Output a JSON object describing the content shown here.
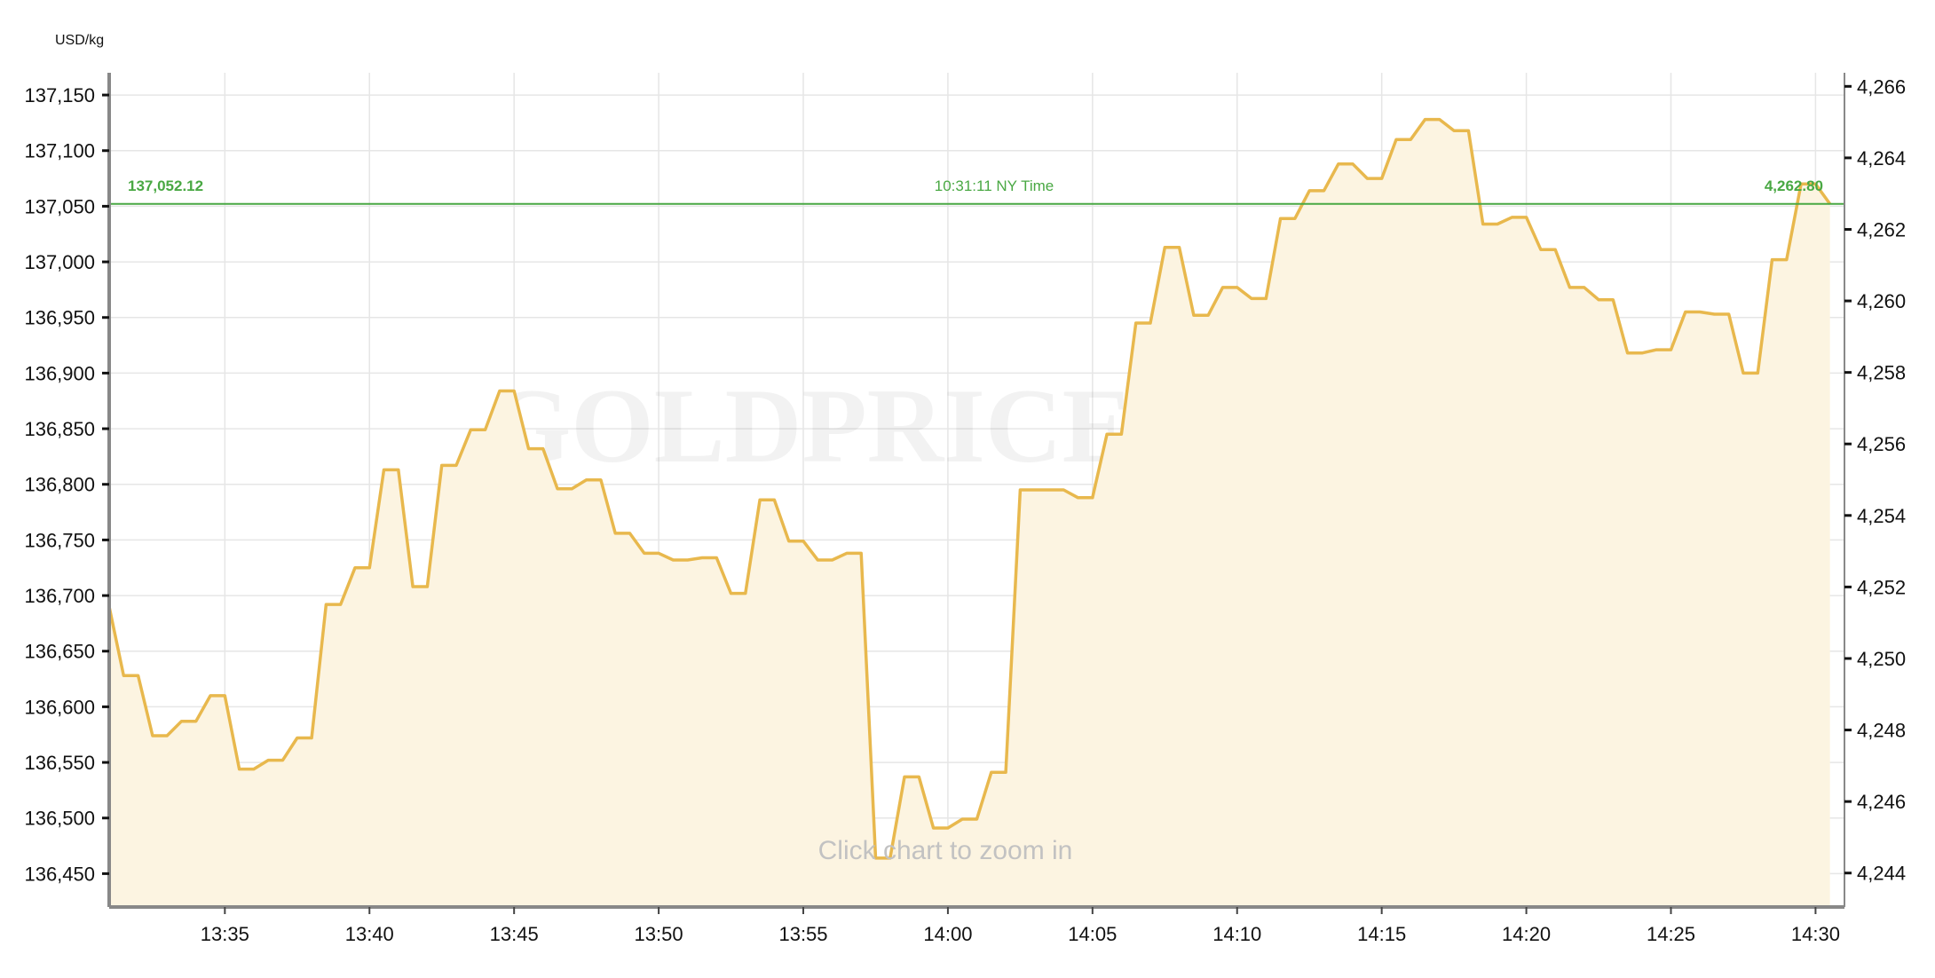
{
  "chart_data": {
    "type": "area",
    "unit_label": "USD/kg",
    "watermark": "GOLDPRICE.ORG",
    "hint": "Click chart to zoom in",
    "reference": {
      "left_label": "137,052.12",
      "time_label": "10:31:11 NY Time",
      "right_label": "4,262.80",
      "value": 137052.12
    },
    "x_tick_labels": [
      "13:35",
      "13:40",
      "13:45",
      "13:50",
      "13:55",
      "14:00",
      "14:05",
      "14:10",
      "14:15",
      "14:20",
      "14:25",
      "14:30"
    ],
    "y_left_tick_labels": [
      "137,150",
      "137,100",
      "137,050",
      "137,000",
      "136,950",
      "136,900",
      "136,850",
      "136,800",
      "136,750",
      "136,700",
      "136,650",
      "136,600",
      "136,550",
      "136,500",
      "136,450"
    ],
    "y_right_tick_labels": [
      "4,266",
      "4,264",
      "4,262",
      "4,260",
      "4,258",
      "4,256",
      "4,254",
      "4,252",
      "4,250",
      "4,248",
      "4,246",
      "4,244"
    ],
    "x_range_minutes": [
      "13:31",
      "14:31"
    ],
    "ylim_left": [
      136420,
      137170
    ],
    "ylim_right": [
      4243.05,
      4266.38
    ],
    "grid": true,
    "line_color": "#e8b84d",
    "fill_color": "#fcf4e1",
    "reference_color": "#49a843",
    "series": [
      {
        "x": [
          "13:31",
          "13:31:30",
          "13:32",
          "13:32:30",
          "13:33",
          "13:33:30",
          "13:34",
          "13:34:30",
          "13:35",
          "13:35:30",
          "13:36",
          "13:36:30",
          "13:37",
          "13:37:30",
          "13:38",
          "13:38:30",
          "13:39",
          "13:39:30",
          "13:40",
          "13:40:30",
          "13:41",
          "13:41:30",
          "13:42",
          "13:42:30",
          "13:43",
          "13:43:30",
          "13:44",
          "13:44:30",
          "13:45",
          "13:45:30",
          "13:46",
          "13:46:30",
          "13:47",
          "13:47:30",
          "13:48",
          "13:48:30",
          "13:49",
          "13:49:30",
          "13:50",
          "13:50:30",
          "13:51",
          "13:51:30",
          "13:52",
          "13:52:30",
          "13:53",
          "13:53:30",
          "13:54",
          "13:54:30",
          "13:55",
          "13:55:30",
          "13:56",
          "13:56:30",
          "13:57",
          "13:57:30",
          "13:58",
          "13:58:30",
          "13:59",
          "13:59:30",
          "14:00",
          "14:00:30",
          "14:01",
          "14:01:30",
          "14:02",
          "14:02:30",
          "14:03",
          "14:03:30",
          "14:04",
          "14:04:30",
          "14:05",
          "14:05:30",
          "14:06",
          "14:06:30",
          "14:07",
          "14:07:30",
          "14:08",
          "14:08:30",
          "14:09",
          "14:09:30",
          "14:10",
          "14:10:30",
          "14:11",
          "14:11:30",
          "14:12",
          "14:12:30",
          "14:13",
          "14:13:30",
          "14:14",
          "14:14:30",
          "14:15",
          "14:15:30",
          "14:16",
          "14:16:30",
          "14:17",
          "14:17:30",
          "14:18",
          "14:18:30",
          "14:19",
          "14:19:30",
          "14:20",
          "14:20:30",
          "14:21",
          "14:21:30",
          "14:22",
          "14:22:30",
          "14:23",
          "14:23:30",
          "14:24",
          "14:24:30",
          "14:25",
          "14:25:30",
          "14:26",
          "14:26:30",
          "14:27",
          "14:27:30",
          "14:28",
          "14:28:30",
          "14:29",
          "14:29:30",
          "14:30",
          "14:30:30"
        ],
        "values": [
          136690,
          136628,
          136628,
          136574,
          136574,
          136587,
          136587,
          136610,
          136610,
          136544,
          136544,
          136552,
          136552,
          136572,
          136572,
          136692,
          136692,
          136725,
          136725,
          136813,
          136813,
          136708,
          136708,
          136817,
          136817,
          136849,
          136849,
          136884,
          136884,
          136832,
          136832,
          136796,
          136796,
          136804,
          136804,
          136756,
          136756,
          136738,
          136738,
          136732,
          136732,
          136734,
          136734,
          136702,
          136702,
          136786,
          136786,
          136749,
          136749,
          136732,
          136732,
          136738,
          136738,
          136464,
          136464,
          136537,
          136537,
          136491,
          136491,
          136499,
          136499,
          136541,
          136541,
          136795,
          136795,
          136795,
          136795,
          136788,
          136788,
          136845,
          136845,
          136945,
          136945,
          137013,
          137013,
          136952,
          136952,
          136977,
          136977,
          136967,
          136967,
          137039,
          137039,
          137064,
          137064,
          137088,
          137088,
          137075,
          137075,
          137110,
          137110,
          137128,
          137128,
          137118,
          137118,
          137034,
          137034,
          137040,
          137040,
          137011,
          137011,
          136977,
          136977,
          136966,
          136966,
          136918,
          136918,
          136921,
          136921,
          136955,
          136955,
          136953,
          136953,
          136900,
          136900,
          137002,
          137002,
          137070,
          137070,
          137052
        ]
      }
    ]
  }
}
